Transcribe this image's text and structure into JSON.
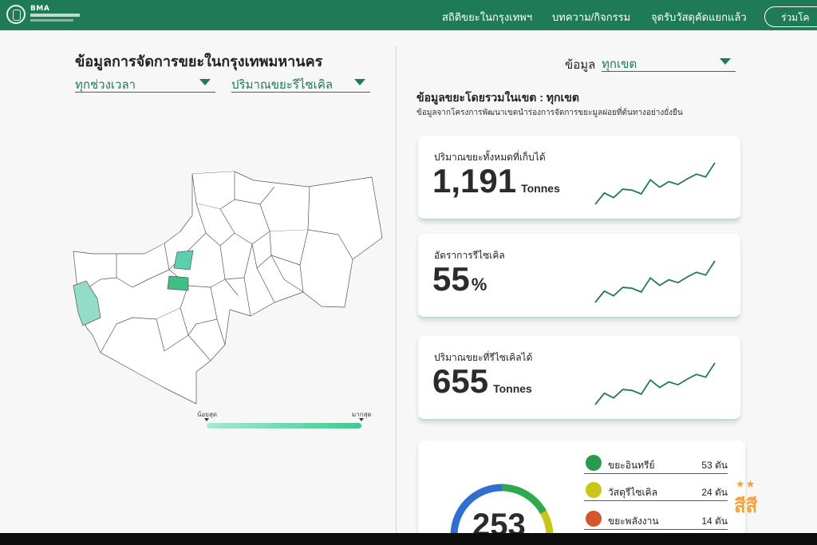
{
  "header": {
    "logo_text": "BMA",
    "nav": [
      "สถิติขยะในกรุงเทพฯ",
      "บทความ/กิจกรรม",
      "จุดรับวัสดุคัดแยกแล้ว"
    ],
    "join_button": "ร่วมโค"
  },
  "left": {
    "title": "ข้อมูลการจัดการขยะในกรุงเทพมหานคร",
    "period_select": "ทุกช่วงเวลา",
    "metric_select": "ปริมาณขยะรีไซเคิล",
    "legend_min": "น้อยสุด",
    "legend_max": "มากสุด"
  },
  "right": {
    "data_label": "ข้อมูล",
    "district_select": "ทุกเขต",
    "title": "ข้อมูลขยะโดยรวมในเขต : ทุกเขต",
    "subtitle": "ข้อมูลจากโครงการพัฒนาเขตนำร่องการจัดการขยะมูลฝอยที่ต้นทางอย่างยั่งยืน",
    "cards": [
      {
        "label": "ปริมาณขยะทั้งหมดที่เก็บได้",
        "value": "1,191",
        "unit": "Tonnes"
      },
      {
        "label": "อัตราการรีไซเคิล",
        "value": "55",
        "unit": "%"
      },
      {
        "label": "ปริมาณขยะที่รีไซเคิลได้",
        "value": "655",
        "unit": "Tonnes"
      }
    ],
    "sparkline_trend": [
      0,
      1.2,
      0.7,
      1.6,
      1.5,
      1.1,
      2.6,
      1.8,
      2.4,
      2.1,
      2.7,
      3.2,
      2.9,
      4.4
    ],
    "total": "253",
    "breakdown": [
      {
        "name": "ขยะอินทรีย์",
        "amount": "53 ตัน",
        "color": "#2a9a4e",
        "icon": "leaf-icon"
      },
      {
        "name": "วัสดุรีไซเคิล",
        "amount": "24 ตัน",
        "color": "#c9c61a",
        "icon": "recycle-icon"
      },
      {
        "name": "ขยะพลังงาน",
        "amount": "14 ตัน",
        "color": "#d2572a",
        "icon": "flame-icon"
      }
    ],
    "gauge_colors": {
      "blue": "#2f6fd0",
      "green": "#2fa84f",
      "yellow": "#c9c61a"
    }
  },
  "watermark": "สีสี"
}
